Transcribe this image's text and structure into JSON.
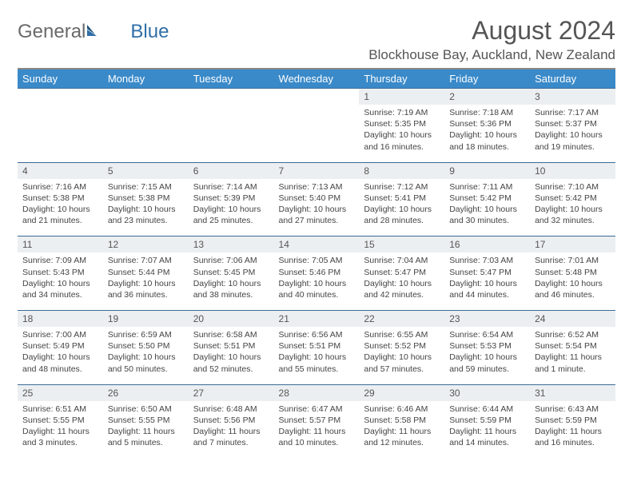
{
  "logo": {
    "text1": "General",
    "text2": "Blue"
  },
  "title": "August 2024",
  "location": "Blockhouse Bay, Auckland, New Zealand",
  "colors": {
    "headerBg": "#3a8ac9",
    "headerText": "#ffffff",
    "dayNumBg": "#eceff1",
    "borderTop": "#3a6a99",
    "logoGray": "#6a6a6a",
    "logoBlue": "#2f6fa8"
  },
  "weekdays": [
    "Sunday",
    "Monday",
    "Tuesday",
    "Wednesday",
    "Thursday",
    "Friday",
    "Saturday"
  ],
  "weeks": [
    [
      {
        "n": "",
        "lines": []
      },
      {
        "n": "",
        "lines": []
      },
      {
        "n": "",
        "lines": []
      },
      {
        "n": "",
        "lines": []
      },
      {
        "n": "1",
        "lines": [
          "Sunrise: 7:19 AM",
          "Sunset: 5:35 PM",
          "Daylight: 10 hours and 16 minutes."
        ]
      },
      {
        "n": "2",
        "lines": [
          "Sunrise: 7:18 AM",
          "Sunset: 5:36 PM",
          "Daylight: 10 hours and 18 minutes."
        ]
      },
      {
        "n": "3",
        "lines": [
          "Sunrise: 7:17 AM",
          "Sunset: 5:37 PM",
          "Daylight: 10 hours and 19 minutes."
        ]
      }
    ],
    [
      {
        "n": "4",
        "lines": [
          "Sunrise: 7:16 AM",
          "Sunset: 5:38 PM",
          "Daylight: 10 hours and 21 minutes."
        ]
      },
      {
        "n": "5",
        "lines": [
          "Sunrise: 7:15 AM",
          "Sunset: 5:38 PM",
          "Daylight: 10 hours and 23 minutes."
        ]
      },
      {
        "n": "6",
        "lines": [
          "Sunrise: 7:14 AM",
          "Sunset: 5:39 PM",
          "Daylight: 10 hours and 25 minutes."
        ]
      },
      {
        "n": "7",
        "lines": [
          "Sunrise: 7:13 AM",
          "Sunset: 5:40 PM",
          "Daylight: 10 hours and 27 minutes."
        ]
      },
      {
        "n": "8",
        "lines": [
          "Sunrise: 7:12 AM",
          "Sunset: 5:41 PM",
          "Daylight: 10 hours and 28 minutes."
        ]
      },
      {
        "n": "9",
        "lines": [
          "Sunrise: 7:11 AM",
          "Sunset: 5:42 PM",
          "Daylight: 10 hours and 30 minutes."
        ]
      },
      {
        "n": "10",
        "lines": [
          "Sunrise: 7:10 AM",
          "Sunset: 5:42 PM",
          "Daylight: 10 hours and 32 minutes."
        ]
      }
    ],
    [
      {
        "n": "11",
        "lines": [
          "Sunrise: 7:09 AM",
          "Sunset: 5:43 PM",
          "Daylight: 10 hours and 34 minutes."
        ]
      },
      {
        "n": "12",
        "lines": [
          "Sunrise: 7:07 AM",
          "Sunset: 5:44 PM",
          "Daylight: 10 hours and 36 minutes."
        ]
      },
      {
        "n": "13",
        "lines": [
          "Sunrise: 7:06 AM",
          "Sunset: 5:45 PM",
          "Daylight: 10 hours and 38 minutes."
        ]
      },
      {
        "n": "14",
        "lines": [
          "Sunrise: 7:05 AM",
          "Sunset: 5:46 PM",
          "Daylight: 10 hours and 40 minutes."
        ]
      },
      {
        "n": "15",
        "lines": [
          "Sunrise: 7:04 AM",
          "Sunset: 5:47 PM",
          "Daylight: 10 hours and 42 minutes."
        ]
      },
      {
        "n": "16",
        "lines": [
          "Sunrise: 7:03 AM",
          "Sunset: 5:47 PM",
          "Daylight: 10 hours and 44 minutes."
        ]
      },
      {
        "n": "17",
        "lines": [
          "Sunrise: 7:01 AM",
          "Sunset: 5:48 PM",
          "Daylight: 10 hours and 46 minutes."
        ]
      }
    ],
    [
      {
        "n": "18",
        "lines": [
          "Sunrise: 7:00 AM",
          "Sunset: 5:49 PM",
          "Daylight: 10 hours and 48 minutes."
        ]
      },
      {
        "n": "19",
        "lines": [
          "Sunrise: 6:59 AM",
          "Sunset: 5:50 PM",
          "Daylight: 10 hours and 50 minutes."
        ]
      },
      {
        "n": "20",
        "lines": [
          "Sunrise: 6:58 AM",
          "Sunset: 5:51 PM",
          "Daylight: 10 hours and 52 minutes."
        ]
      },
      {
        "n": "21",
        "lines": [
          "Sunrise: 6:56 AM",
          "Sunset: 5:51 PM",
          "Daylight: 10 hours and 55 minutes."
        ]
      },
      {
        "n": "22",
        "lines": [
          "Sunrise: 6:55 AM",
          "Sunset: 5:52 PM",
          "Daylight: 10 hours and 57 minutes."
        ]
      },
      {
        "n": "23",
        "lines": [
          "Sunrise: 6:54 AM",
          "Sunset: 5:53 PM",
          "Daylight: 10 hours and 59 minutes."
        ]
      },
      {
        "n": "24",
        "lines": [
          "Sunrise: 6:52 AM",
          "Sunset: 5:54 PM",
          "Daylight: 11 hours and 1 minute."
        ]
      }
    ],
    [
      {
        "n": "25",
        "lines": [
          "Sunrise: 6:51 AM",
          "Sunset: 5:55 PM",
          "Daylight: 11 hours and 3 minutes."
        ]
      },
      {
        "n": "26",
        "lines": [
          "Sunrise: 6:50 AM",
          "Sunset: 5:55 PM",
          "Daylight: 11 hours and 5 minutes."
        ]
      },
      {
        "n": "27",
        "lines": [
          "Sunrise: 6:48 AM",
          "Sunset: 5:56 PM",
          "Daylight: 11 hours and 7 minutes."
        ]
      },
      {
        "n": "28",
        "lines": [
          "Sunrise: 6:47 AM",
          "Sunset: 5:57 PM",
          "Daylight: 11 hours and 10 minutes."
        ]
      },
      {
        "n": "29",
        "lines": [
          "Sunrise: 6:46 AM",
          "Sunset: 5:58 PM",
          "Daylight: 11 hours and 12 minutes."
        ]
      },
      {
        "n": "30",
        "lines": [
          "Sunrise: 6:44 AM",
          "Sunset: 5:59 PM",
          "Daylight: 11 hours and 14 minutes."
        ]
      },
      {
        "n": "31",
        "lines": [
          "Sunrise: 6:43 AM",
          "Sunset: 5:59 PM",
          "Daylight: 11 hours and 16 minutes."
        ]
      }
    ]
  ]
}
